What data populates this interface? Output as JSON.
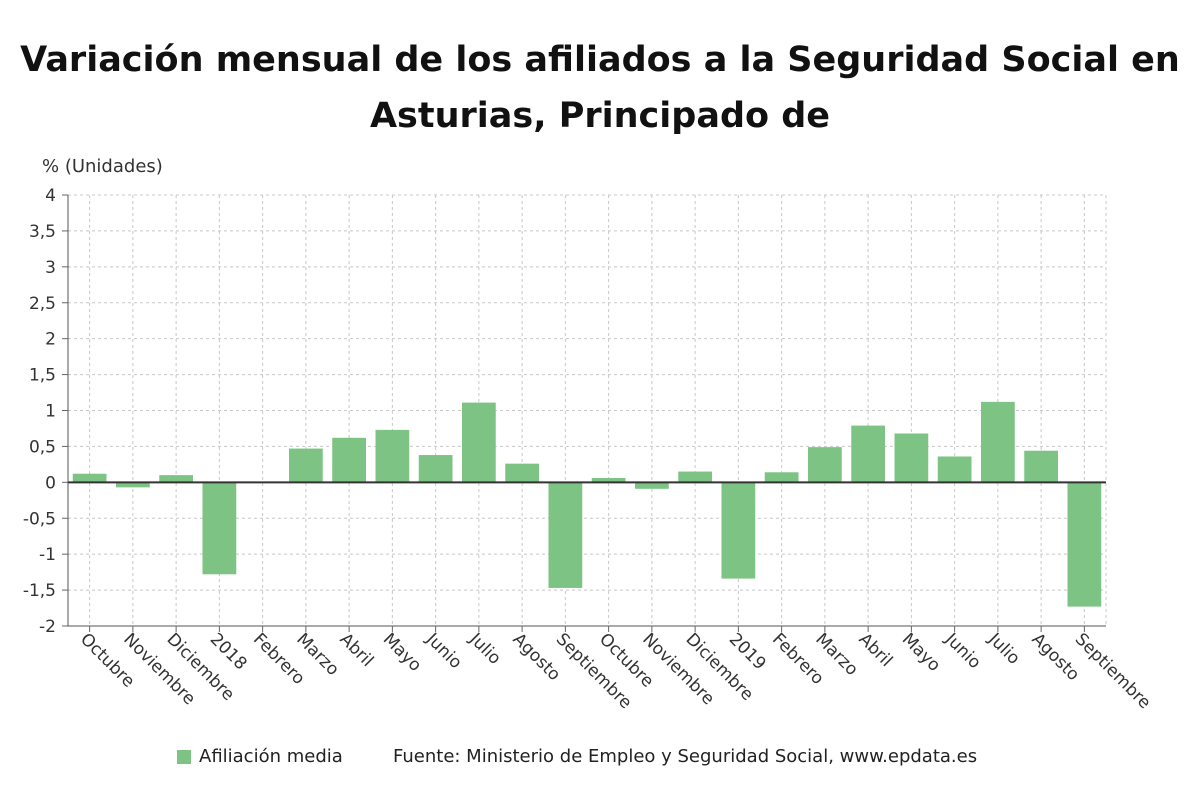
{
  "chart_data": {
    "type": "bar",
    "title": "Variación mensual de los afiliados a la Seguridad Social en Asturias, Principado de",
    "ylabel": "% (Unidades)",
    "xlabel": "",
    "ylim": [
      -2,
      4
    ],
    "yticks": [
      4,
      3.5,
      3,
      2.5,
      2,
      1.5,
      1,
      0.5,
      0,
      -0.5,
      -1,
      -1.5,
      -2
    ],
    "ytick_labels": [
      "4",
      "3,5",
      "3",
      "2,5",
      "2",
      "1,5",
      "1",
      "0,5",
      "0",
      "-0,5",
      "-1",
      "-1,5",
      "-2"
    ],
    "grid": true,
    "categories": [
      "Octubre",
      "Noviembre",
      "Diciembre",
      "2018",
      "Febrero",
      "Marzo",
      "Abril",
      "Mayo",
      "Junio",
      "Julio",
      "Agosto",
      "Septiembre",
      "Octubre",
      "Noviembre",
      "Diciembre",
      "2019",
      "Febrero",
      "Marzo",
      "Abril",
      "Mayo",
      "Junio",
      "Julio",
      "Agosto",
      "Septiembre"
    ],
    "series": [
      {
        "name": "Afiliación media",
        "color": "#7dc383",
        "values": [
          0.12,
          -0.07,
          0.1,
          -1.28,
          null,
          0.47,
          0.62,
          0.73,
          0.38,
          1.11,
          0.26,
          -1.47,
          0.06,
          -0.09,
          0.15,
          -1.34,
          0.14,
          0.49,
          0.79,
          0.68,
          0.36,
          1.12,
          0.44,
          -1.73
        ]
      }
    ],
    "legend": "bottom-left",
    "source": "Fuente: Ministerio de Empleo y Seguridad Social, www.epdata.es"
  }
}
